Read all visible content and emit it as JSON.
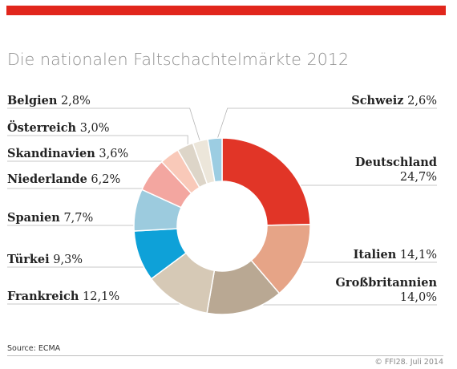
{
  "title": "Die nationalen Faltschachtelmärkte 2012",
  "source": "Source: ECMA",
  "copyright": "© FFI28. Juli 2014",
  "colors": {
    "accent_bar": "#e1261c"
  },
  "chart_data": {
    "type": "pie",
    "donut": true,
    "title": "Die nationalen Faltschachtelmärkte 2012",
    "unit": "%",
    "categories": [
      "Deutschland",
      "Italien",
      "Großbritannien",
      "Frankreich",
      "Türkei",
      "Spanien",
      "Niederlande",
      "Skandinavien",
      "Österreich",
      "Belgien",
      "Schweiz"
    ],
    "values": [
      24.7,
      14.1,
      14.0,
      12.1,
      9.3,
      7.7,
      6.2,
      3.6,
      3.0,
      2.8,
      2.6
    ],
    "value_labels": [
      "24,7%",
      "14,1%",
      "14,0%",
      "12,1%",
      "9,3%",
      "7,7%",
      "6,2%",
      "3,6%",
      "3,0%",
      "2,8%",
      "2,6%"
    ],
    "colors": [
      "#e13527",
      "#e6a487",
      "#b9a893",
      "#d6c9b6",
      "#0ea1d8",
      "#9ccbde",
      "#f3a6a0",
      "#f9c9b9",
      "#ddd5c8",
      "#ece6da",
      "#9ccde2"
    ]
  }
}
